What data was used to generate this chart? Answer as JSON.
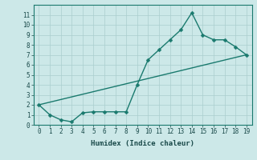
{
  "title": "",
  "xlabel": "Humidex (Indice chaleur)",
  "xlim": [
    -0.5,
    19.5
  ],
  "ylim": [
    0,
    12
  ],
  "yticks": [
    0,
    1,
    2,
    3,
    4,
    5,
    6,
    7,
    8,
    9,
    10,
    11
  ],
  "xticks": [
    0,
    1,
    2,
    3,
    4,
    5,
    6,
    7,
    8,
    9,
    10,
    11,
    12,
    13,
    14,
    15,
    16,
    17,
    18,
    19
  ],
  "bg_color": "#cce8e8",
  "grid_color": "#aacece",
  "line_color": "#1a7a6e",
  "line1_x": [
    0,
    1,
    2,
    3,
    4,
    5,
    6,
    7,
    8,
    9,
    10,
    11,
    12,
    13,
    14,
    15,
    16,
    17,
    18,
    19
  ],
  "line1_y": [
    2,
    1,
    0.5,
    0.3,
    1.2,
    1.3,
    1.3,
    1.3,
    1.3,
    4.0,
    6.5,
    7.5,
    8.5,
    9.5,
    11.2,
    9.0,
    8.5,
    8.5,
    7.8,
    7.0
  ],
  "line2_x": [
    0,
    19
  ],
  "line2_y": [
    2,
    7.0
  ],
  "markersize": 2.5,
  "linewidth": 1.0
}
